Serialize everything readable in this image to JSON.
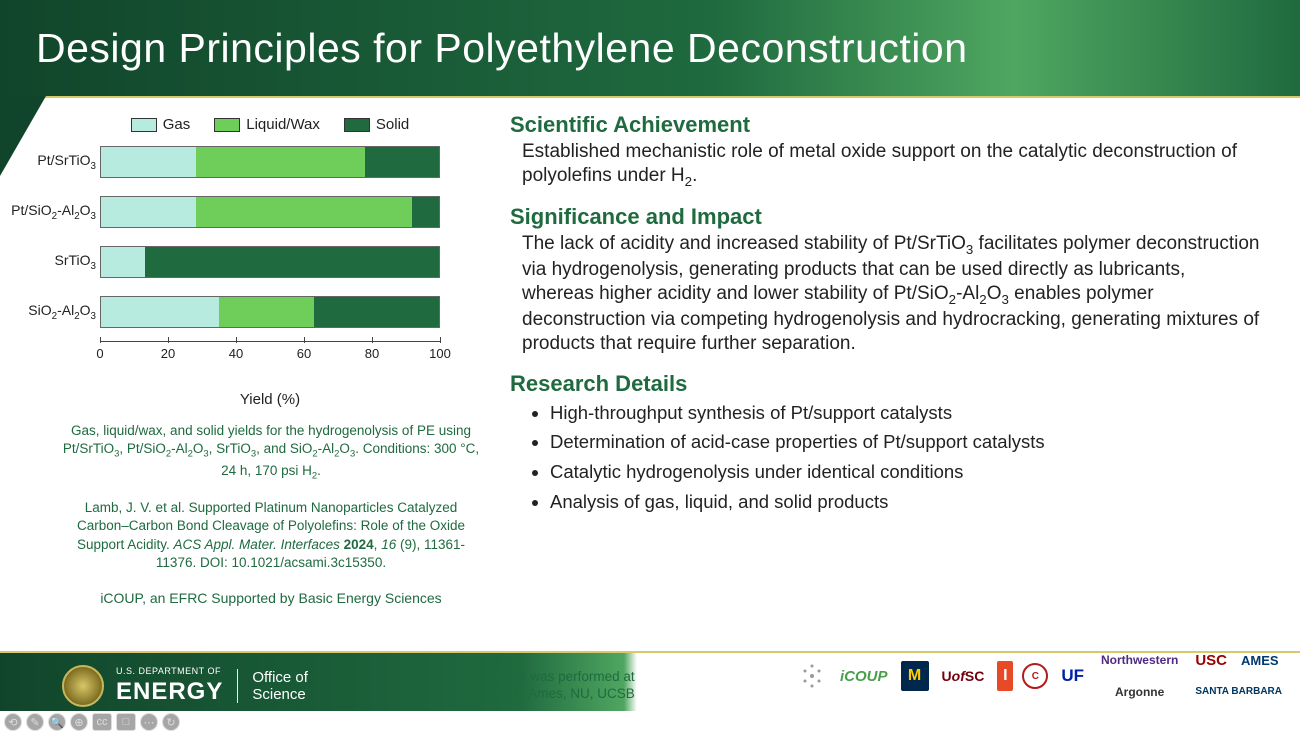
{
  "header": {
    "title": "Design Principles for Polyethylene Deconstruction"
  },
  "chart": {
    "type": "stacked-horizontal-bar",
    "legend": [
      {
        "label": "Gas",
        "color": "#b8ebdf"
      },
      {
        "label": "Liquid/Wax",
        "color": "#6fce5a"
      },
      {
        "label": "Solid",
        "color": "#1f6a3f"
      }
    ],
    "xlabel": "Yield (%)",
    "xlim": [
      0,
      100
    ],
    "xtick_step": 20,
    "bar_border_color": "#666666",
    "background_color": "#ffffff",
    "label_fontsize": 14,
    "axis_fontsize": 13,
    "rows": [
      {
        "label_html": "Pt/SrTiO<sub>3</sub>",
        "segments": [
          28,
          50,
          22
        ]
      },
      {
        "label_html": "Pt/SiO<sub>2</sub>-Al<sub>2</sub>O<sub>3</sub>",
        "segments": [
          28,
          64,
          8
        ]
      },
      {
        "label_html": "SrTiO<sub>3</sub>",
        "segments": [
          13,
          0,
          87
        ]
      },
      {
        "label_html": "SiO<sub>2</sub>-Al<sub>2</sub>O<sub>3</sub>",
        "segments": [
          35,
          28,
          37
        ]
      }
    ]
  },
  "caption_html": "Gas, liquid/wax, and solid yields for the hydrogenolysis of PE using Pt/SrTiO<sub>3</sub>, Pt/SiO<sub>2</sub>-Al<sub>2</sub>O<sub>3</sub>, SrTiO<sub>3</sub>, and SiO<sub>2</sub>-Al<sub>2</sub>O<sub>3</sub>. Conditions: 300 °C, 24 h, 170 psi H<sub>2</sub>.",
  "citation_html": "Lamb, J. V. et al. Supported Platinum Nanoparticles Catalyzed Carbon–Carbon Bond Cleavage of Polyolefins: Role of the Oxide Support Acidity. <i>ACS Appl. Mater. Interfaces</i> <b>2024</b>, <i>16</i> (9), 11361-11376. DOI: 10.1021/acsami.3c15350.",
  "efrc_line": "iCOUP, an EFRC Supported by Basic Energy Sciences",
  "sections": {
    "achievement": {
      "head": "Scientific Achievement",
      "body_html": "Established mechanistic role of metal oxide support on the catalytic deconstruction of polyolefins under H<sub>2</sub>."
    },
    "significance": {
      "head": "Significance and Impact",
      "body_html": "The lack of acidity and increased stability of Pt/SrTiO<sub>3</sub> facilitates polymer deconstruction via hydrogenolysis, generating products that can be used directly as lubricants, whereas higher acidity and lower stability of Pt/SiO<sub>2</sub>-Al<sub>2</sub>O<sub>3</sub> enables polymer deconstruction via competing hydrogenolysis and hydrocracking, generating mixtures of products that require further separation."
    },
    "details": {
      "head": "Research Details",
      "bullets": [
        "High-throughput synthesis of Pt/support catalysts",
        "Determination of acid-case properties of Pt/support catalysts",
        "Catalytic hydrogenolysis under identical conditions",
        "Analysis of gas, liquid, and solid products"
      ]
    }
  },
  "footer": {
    "doe_dept": "U.S. DEPARTMENT OF",
    "doe_energy": "ENERGY",
    "office_l1": "Office of",
    "office_l2": "Science",
    "work_note_l1": "Work was performed at",
    "work_note_l2": "ANL, Ames, NU, UCSB",
    "logos": {
      "icoup": "iCOUP",
      "mich": "M",
      "uofsc": "Uof\nSC",
      "ill": "I",
      "corn": "C",
      "uf": "UF",
      "nw": "Northwestern",
      "arg": "Argonne",
      "usc": "USC",
      "ames": "AMES",
      "sb": "SANTA BARBARA"
    }
  },
  "viewer_icons": [
    "⟲",
    "✎",
    "🔍",
    "⊕",
    "cc",
    "□",
    "⋯",
    "↻"
  ]
}
